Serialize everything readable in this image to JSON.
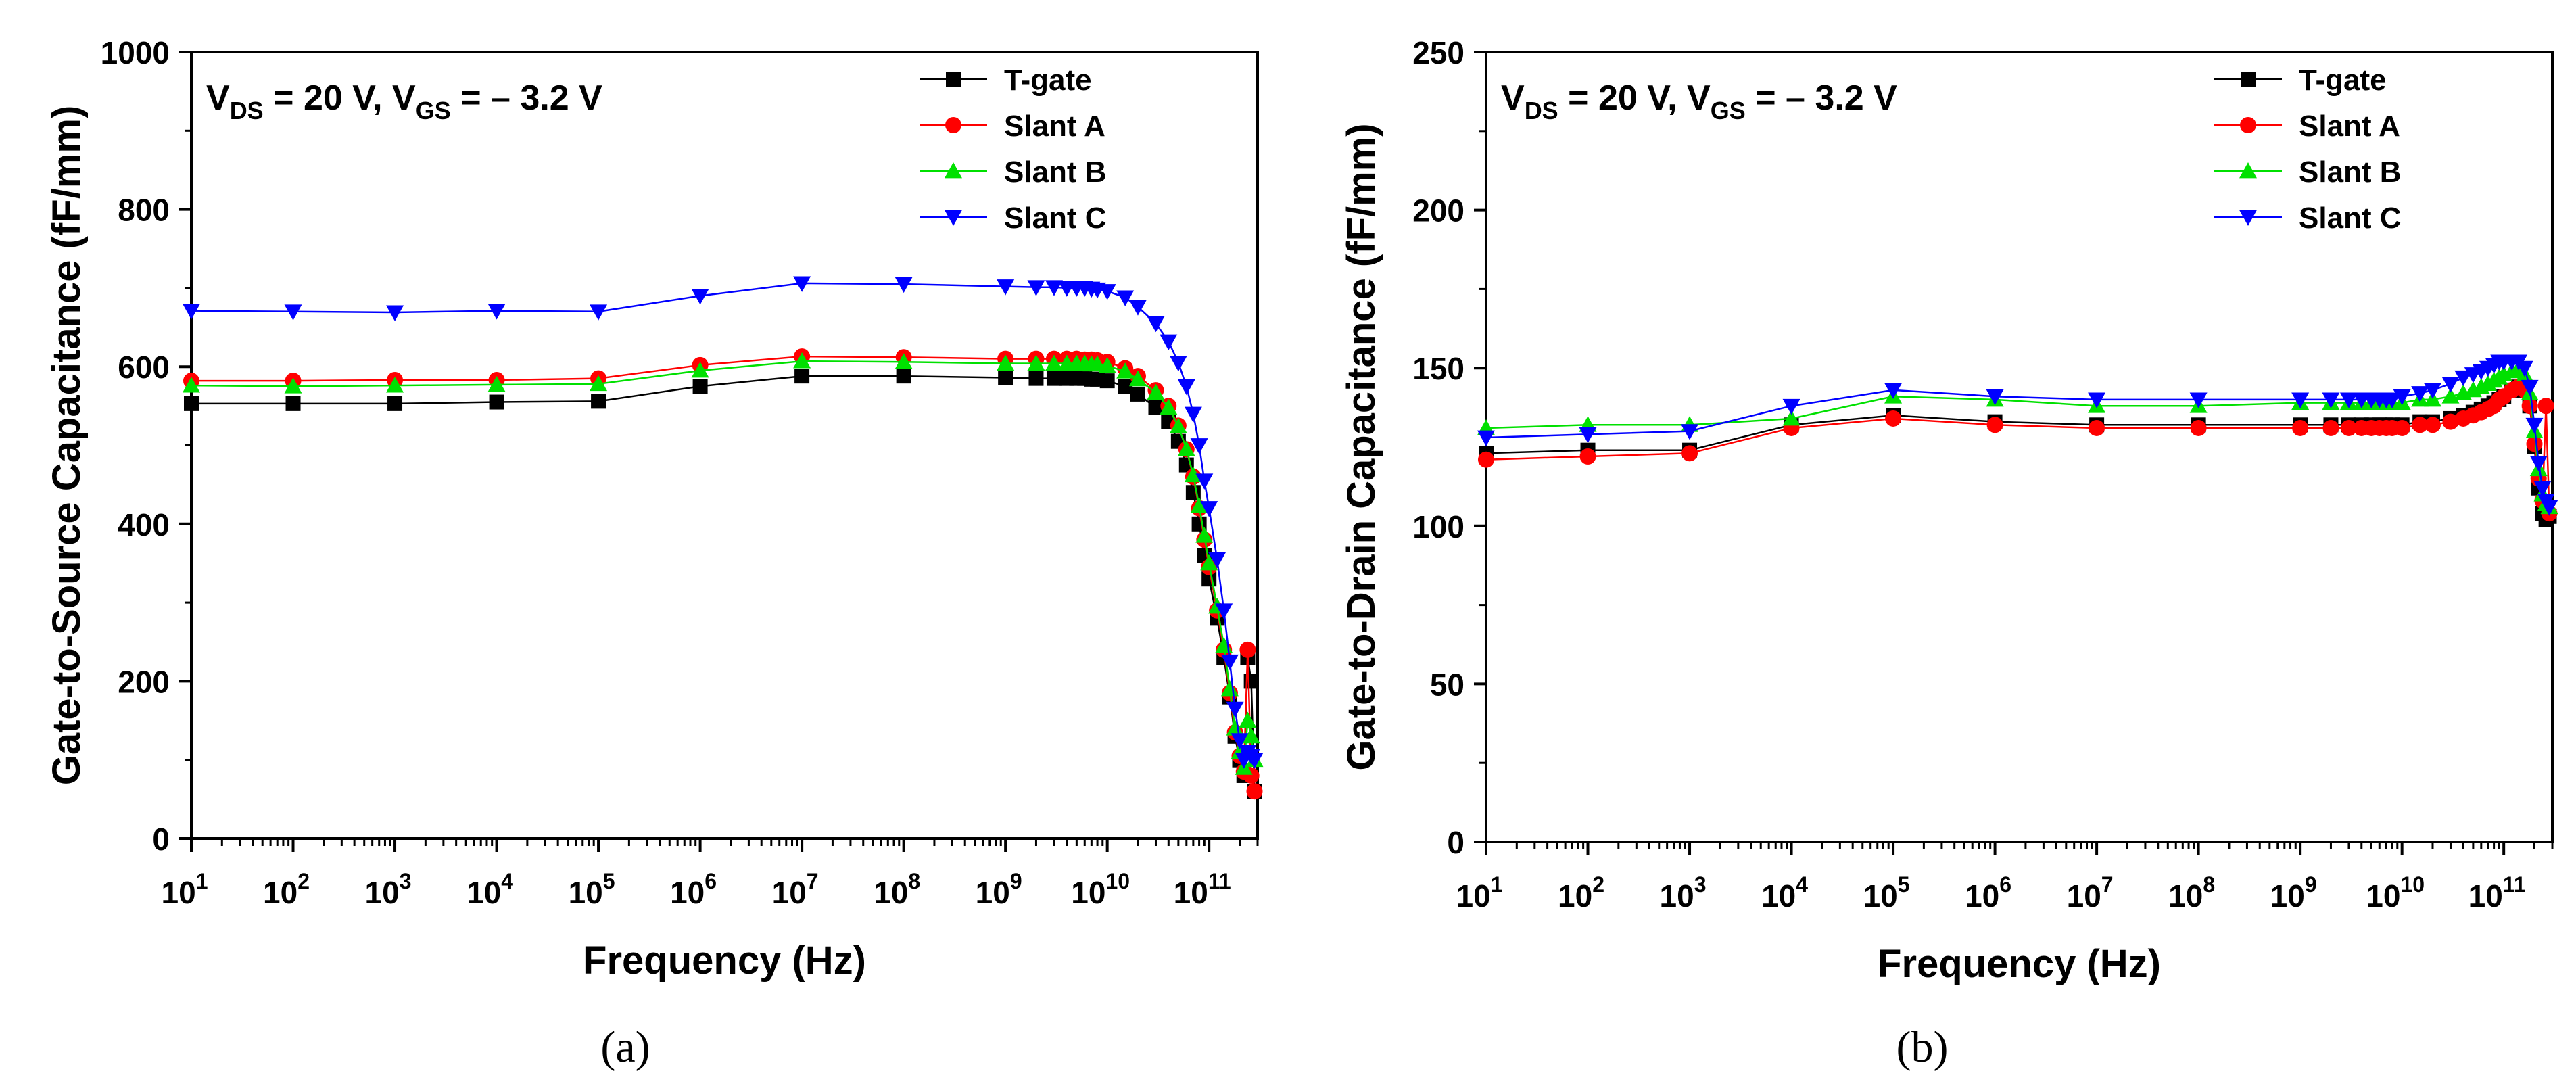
{
  "colors": {
    "t_gate": "#000000",
    "slant_a": "#ff0000",
    "slant_b": "#00e000",
    "slant_c": "#0000ff"
  },
  "chart_data": [
    {
      "type": "line",
      "panel_label": "a",
      "caption": "(a)",
      "annotation": {
        "base1": "V",
        "sub1": "DS",
        "mid": " = 20 V, V",
        "sub2": "GS",
        "tail": " = – 3.2 V"
      },
      "xlabel": "Frequency (Hz)",
      "ylabel": "Gate-to-Source Capacitance (fF/mm)",
      "xscale": "log",
      "xlim": [
        10,
        300000000000
      ],
      "ylim": [
        0,
        1000
      ],
      "yticks": [
        0,
        200,
        400,
        600,
        800,
        1000
      ],
      "ytick_labels": [
        "0",
        "200",
        "400",
        "600",
        "800",
        "1000"
      ],
      "xtick_exponents": [
        "1",
        "2",
        "3",
        "4",
        "5",
        "6",
        "7",
        "8",
        "9",
        "10",
        "11"
      ],
      "legend_position": "top-right",
      "x": [
        10,
        100,
        1000,
        10000,
        100000,
        1000000,
        10000000,
        100000000,
        1000000000,
        2000000000,
        3000000000,
        4000000000,
        5000000000,
        6000000000,
        7000000000,
        8000000000,
        10000000000,
        15000000000,
        20000000000,
        30000000000,
        40000000000,
        50000000000,
        60000000000,
        70000000000,
        80000000000,
        90000000000,
        100000000000,
        120000000000,
        140000000000,
        160000000000,
        180000000000,
        200000000000,
        220000000000,
        240000000000,
        260000000000,
        280000000000
      ],
      "series": [
        {
          "name": "T-gate",
          "color_key": "t_gate",
          "marker": "square",
          "values": [
            553,
            553,
            553,
            555,
            556,
            575,
            588,
            588,
            586,
            585,
            585,
            585,
            585,
            585,
            584,
            584,
            582,
            575,
            565,
            548,
            530,
            505,
            475,
            440,
            400,
            360,
            330,
            280,
            230,
            180,
            130,
            100,
            80,
            230,
            200,
            60
          ]
        },
        {
          "name": "Slant A",
          "color_key": "slant_a",
          "marker": "circle",
          "values": [
            582,
            582,
            583,
            583,
            585,
            602,
            613,
            612,
            610,
            610,
            610,
            610,
            610,
            609,
            609,
            608,
            606,
            598,
            588,
            570,
            550,
            525,
            495,
            460,
            420,
            380,
            345,
            290,
            240,
            185,
            135,
            105,
            85,
            240,
            80,
            60
          ]
        },
        {
          "name": "Slant B",
          "color_key": "slant_b",
          "marker": "triangle-up",
          "values": [
            576,
            575,
            576,
            577,
            578,
            595,
            607,
            606,
            604,
            604,
            604,
            604,
            604,
            604,
            603,
            603,
            601,
            594,
            584,
            567,
            548,
            524,
            495,
            462,
            423,
            385,
            350,
            295,
            245,
            190,
            140,
            110,
            90,
            150,
            130,
            100
          ]
        },
        {
          "name": "Slant C",
          "color_key": "slant_c",
          "marker": "triangle-down",
          "values": [
            671,
            670,
            669,
            671,
            670,
            690,
            706,
            705,
            702,
            701,
            701,
            700,
            700,
            700,
            699,
            698,
            696,
            688,
            676,
            655,
            632,
            605,
            575,
            540,
            500,
            455,
            420,
            355,
            290,
            225,
            165,
            125,
            100,
            110,
            105,
            100
          ]
        }
      ]
    },
    {
      "type": "line",
      "panel_label": "b",
      "caption": "(b)",
      "annotation": {
        "base1": "V",
        "sub1": "DS",
        "mid": " = 20 V, V",
        "sub2": "GS",
        "tail": " = – 3.2 V"
      },
      "xlabel": "Frequency (Hz)",
      "ylabel": "Gate-to-Drain Capacitance (fF/mm)",
      "xscale": "log",
      "xlim": [
        10,
        300000000000
      ],
      "ylim": [
        0,
        250
      ],
      "yticks": [
        0,
        50,
        100,
        150,
        200,
        250
      ],
      "ytick_labels": [
        "0",
        "50",
        "100",
        "150",
        "200",
        "250"
      ],
      "xtick_exponents": [
        "1",
        "2",
        "3",
        "4",
        "5",
        "6",
        "7",
        "8",
        "9",
        "10",
        "11"
      ],
      "legend_position": "top-right",
      "x": [
        10,
        100,
        1000,
        10000,
        100000,
        1000000,
        10000000,
        100000000,
        1000000000,
        2000000000,
        3000000000,
        4000000000,
        5000000000,
        6000000000,
        7000000000,
        8000000000,
        10000000000,
        15000000000,
        20000000000,
        30000000000,
        40000000000,
        50000000000,
        60000000000,
        70000000000,
        80000000000,
        90000000000,
        100000000000,
        120000000000,
        140000000000,
        160000000000,
        180000000000,
        200000000000,
        220000000000,
        240000000000,
        260000000000,
        280000000000
      ],
      "series": [
        {
          "name": "T-gate",
          "color_key": "t_gate",
          "marker": "square",
          "values": [
            123,
            124,
            124,
            132,
            135,
            133,
            132,
            132,
            132,
            132,
            132,
            132,
            132,
            132,
            132,
            132,
            132,
            133,
            133,
            134,
            135,
            136,
            137,
            138,
            139,
            140,
            141,
            143,
            144,
            143,
            138,
            125,
            112,
            104,
            102,
            103
          ]
        },
        {
          "name": "Slant A",
          "color_key": "slant_a",
          "marker": "circle",
          "values": [
            121,
            122,
            123,
            131,
            134,
            132,
            131,
            131,
            131,
            131,
            131,
            131,
            131,
            131,
            131,
            131,
            131,
            132,
            132,
            133,
            134,
            135,
            136,
            137,
            138,
            140,
            141,
            143,
            144,
            143,
            138,
            126,
            115,
            108,
            138,
            104
          ]
        },
        {
          "name": "Slant B",
          "color_key": "slant_b",
          "marker": "triangle-up",
          "values": [
            131,
            132,
            132,
            134,
            141,
            140,
            138,
            138,
            139,
            139,
            139,
            139,
            139,
            139,
            139,
            139,
            139,
            140,
            140,
            141,
            142,
            143,
            144,
            145,
            146,
            147,
            148,
            149,
            150,
            148,
            142,
            130,
            118,
            110,
            107,
            106
          ]
        },
        {
          "name": "Slant C",
          "color_key": "slant_c",
          "marker": "triangle-down",
          "values": [
            128,
            129,
            130,
            138,
            143,
            141,
            140,
            140,
            140,
            140,
            140,
            140,
            140,
            140,
            140,
            140,
            141,
            142,
            143,
            145,
            147,
            148,
            149,
            150,
            151,
            152,
            152,
            152,
            152,
            150,
            144,
            132,
            120,
            112,
            108,
            106
          ]
        }
      ]
    }
  ]
}
